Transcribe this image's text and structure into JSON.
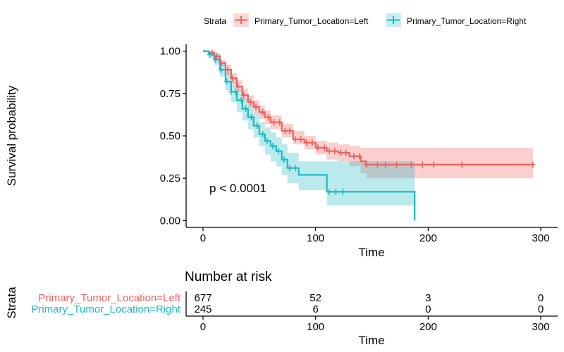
{
  "colors": {
    "left": "#f0605d",
    "right": "#1db9c1"
  },
  "legend": {
    "title": "Strata",
    "items": [
      "Primary_Tumor_Location=Left",
      "Primary_Tumor_Location=Right"
    ]
  },
  "annotation": "p < 0.0001",
  "risk_table": {
    "title": "Number at risk",
    "strata_label": "Strata",
    "xlabel": "Time",
    "times": [
      0,
      100,
      200,
      300
    ],
    "ticks": [
      "0",
      "100",
      "200",
      "300"
    ],
    "rows": [
      {
        "label": "Primary_Tumor_Location=Left",
        "counts": [
          "677",
          "52",
          "3",
          "0"
        ]
      },
      {
        "label": "Primary_Tumor_Location=Right",
        "counts": [
          "245",
          "6",
          "0",
          "0"
        ]
      }
    ]
  },
  "chart_data": {
    "type": "line",
    "xlabel": "Time",
    "ylabel": "Survival probability",
    "xlim": [
      -15,
      315
    ],
    "ylim": [
      -0.04,
      1.04
    ],
    "xticks": [
      0,
      100,
      200,
      300
    ],
    "xtick_labels": [
      "0",
      "100",
      "200",
      "300"
    ],
    "yticks": [
      0,
      0.25,
      0.5,
      0.75,
      1.0
    ],
    "ytick_labels": [
      "0.00",
      "0.25",
      "0.50",
      "0.75",
      "1.00"
    ],
    "grid": false,
    "legend_position": "top",
    "series": [
      {
        "name": "Primary_Tumor_Location=Left",
        "color": "#f0605d",
        "x": [
          0,
          5,
          10,
          15,
          20,
          25,
          30,
          35,
          40,
          45,
          50,
          55,
          60,
          70,
          80,
          90,
          100,
          110,
          120,
          130,
          140,
          145,
          160,
          200,
          250,
          293
        ],
        "y": [
          1.0,
          0.99,
          0.97,
          0.93,
          0.89,
          0.84,
          0.79,
          0.74,
          0.7,
          0.67,
          0.64,
          0.61,
          0.58,
          0.53,
          0.48,
          0.46,
          0.43,
          0.41,
          0.4,
          0.38,
          0.35,
          0.33,
          0.33,
          0.33,
          0.33,
          0.33
        ],
        "lower": [
          1.0,
          0.98,
          0.95,
          0.91,
          0.86,
          0.81,
          0.76,
          0.71,
          0.67,
          0.63,
          0.6,
          0.57,
          0.54,
          0.49,
          0.45,
          0.42,
          0.39,
          0.36,
          0.35,
          0.32,
          0.28,
          0.25,
          0.25,
          0.25,
          0.25,
          0.25
        ],
        "upper": [
          1.0,
          1.0,
          0.99,
          0.95,
          0.92,
          0.87,
          0.83,
          0.78,
          0.74,
          0.71,
          0.68,
          0.65,
          0.62,
          0.57,
          0.53,
          0.5,
          0.47,
          0.46,
          0.45,
          0.44,
          0.43,
          0.43,
          0.43,
          0.43,
          0.43,
          0.43
        ],
        "censor_x": [
          8,
          12,
          16,
          22,
          26,
          31,
          36,
          42,
          47,
          53,
          58,
          63,
          68,
          73,
          77,
          82,
          87,
          92,
          97,
          102,
          108,
          112,
          117,
          122,
          127,
          134,
          139,
          145,
          155,
          162,
          172,
          185,
          195,
          205,
          230,
          293
        ]
      },
      {
        "name": "Primary_Tumor_Location=Right",
        "color": "#1db9c1",
        "x": [
          0,
          5,
          10,
          15,
          20,
          25,
          30,
          35,
          40,
          45,
          50,
          55,
          60,
          65,
          70,
          75,
          85,
          100,
          109,
          110,
          150,
          187,
          188
        ],
        "y": [
          1.0,
          0.98,
          0.95,
          0.89,
          0.82,
          0.76,
          0.71,
          0.66,
          0.61,
          0.56,
          0.51,
          0.47,
          0.44,
          0.41,
          0.36,
          0.31,
          0.27,
          0.27,
          0.27,
          0.17,
          0.17,
          0.17,
          0.0
        ],
        "lower": [
          1.0,
          0.96,
          0.92,
          0.85,
          0.77,
          0.7,
          0.64,
          0.59,
          0.54,
          0.49,
          0.44,
          0.39,
          0.35,
          0.32,
          0.27,
          0.22,
          0.18,
          0.18,
          0.18,
          0.09,
          0.09,
          0.03,
          0.0
        ],
        "upper": [
          1.0,
          1.0,
          0.98,
          0.93,
          0.87,
          0.82,
          0.77,
          0.72,
          0.68,
          0.63,
          0.58,
          0.55,
          0.52,
          0.49,
          0.45,
          0.4,
          0.35,
          0.35,
          0.35,
          0.35,
          0.35,
          0.35,
          0.35
        ],
        "censor_x": [
          6,
          11,
          16,
          21,
          25,
          29,
          34,
          38,
          43,
          48,
          53,
          57,
          62,
          67,
          72,
          77,
          82,
          112,
          118,
          124
        ]
      }
    ]
  }
}
